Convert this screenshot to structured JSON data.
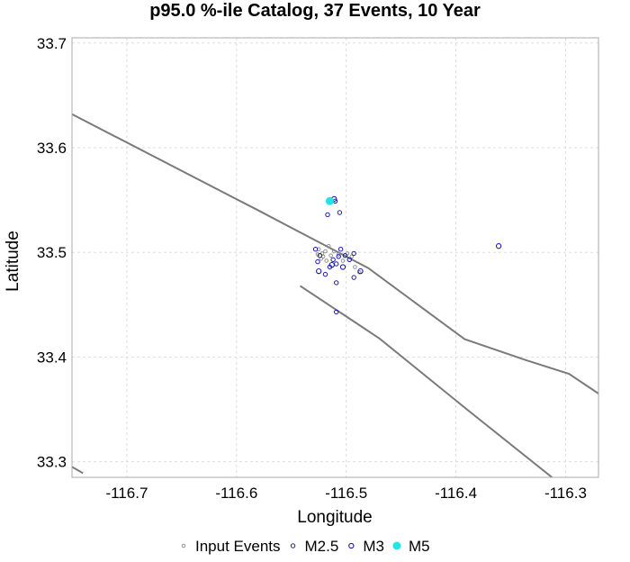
{
  "chart_data": {
    "type": "scatter",
    "title": "p95.0 %-ile Catalog, 37 Events, 10 Year",
    "xlabel": "Longitude",
    "ylabel": "Latitude",
    "xlim": [
      -116.75,
      -116.27
    ],
    "ylim": [
      33.285,
      33.705
    ],
    "x_ticks": [
      -116.7,
      -116.6,
      -116.5,
      -116.4,
      -116.3
    ],
    "x_tick_labels": [
      "-116.7",
      "-116.6",
      "-116.5",
      "-116.4",
      "-116.3"
    ],
    "y_ticks": [
      33.3,
      33.4,
      33.5,
      33.6,
      33.7
    ],
    "y_tick_labels": [
      "33.3",
      "33.4",
      "33.5",
      "33.6",
      "33.7"
    ],
    "grid": true,
    "legend_position": "bottom",
    "fault_lines": [
      {
        "points": [
          [
            -116.75,
            33.632
          ],
          [
            -116.58,
            33.54
          ],
          [
            -116.54,
            33.518
          ],
          [
            -116.48,
            33.485
          ],
          [
            -116.392,
            33.417
          ],
          [
            -116.336,
            33.397
          ],
          [
            -116.297,
            33.384
          ],
          [
            -116.27,
            33.365
          ]
        ]
      },
      {
        "points": [
          [
            -116.542,
            33.468
          ],
          [
            -116.47,
            33.418
          ],
          [
            -116.39,
            33.35
          ],
          [
            -116.31,
            33.283
          ]
        ]
      },
      {
        "points": [
          [
            -116.75,
            33.295
          ],
          [
            -116.74,
            33.289
          ]
        ]
      }
    ],
    "series": [
      {
        "name": "Input Events",
        "color": "#888888",
        "marker": "open-circle",
        "size": "small",
        "points": [
          [
            -116.525,
            33.503
          ],
          [
            -116.522,
            33.499
          ],
          [
            -116.519,
            33.501
          ],
          [
            -116.516,
            33.506
          ],
          [
            -116.521,
            33.496
          ],
          [
            -116.514,
            33.497
          ],
          [
            -116.511,
            33.501
          ],
          [
            -116.507,
            33.498
          ],
          [
            -116.503,
            33.492
          ],
          [
            -116.499,
            33.499
          ],
          [
            -116.495,
            33.496
          ],
          [
            -116.492,
            33.486
          ],
          [
            -116.488,
            33.481
          ],
          [
            -116.526,
            33.498
          ],
          [
            -116.523,
            33.494
          ],
          [
            -116.518,
            33.492
          ]
        ]
      },
      {
        "name": "M2.5",
        "color": "#1a1aa8",
        "marker": "open-circle",
        "size": "medium",
        "points": [
          [
            -116.517,
            33.536
          ],
          [
            -116.506,
            33.538
          ],
          [
            -116.528,
            33.503
          ],
          [
            -116.524,
            33.497
          ],
          [
            -116.512,
            33.493
          ],
          [
            -116.509,
            33.489
          ],
          [
            -116.507,
            33.496
          ],
          [
            -116.505,
            33.503
          ],
          [
            -116.501,
            33.497
          ],
          [
            -116.497,
            33.493
          ],
          [
            -116.493,
            33.499
          ],
          [
            -116.515,
            33.486
          ],
          [
            -116.519,
            33.479
          ],
          [
            -116.526,
            33.491
          ],
          [
            -116.509,
            33.471
          ],
          [
            -116.493,
            33.476
          ],
          [
            -116.509,
            33.443
          ],
          [
            -116.51,
            33.549
          ]
        ]
      },
      {
        "name": "M3",
        "color": "#1a1aa8",
        "marker": "open-circle",
        "size": "large",
        "points": [
          [
            -116.511,
            33.551
          ],
          [
            -116.525,
            33.482
          ],
          [
            -116.513,
            33.488
          ],
          [
            -116.503,
            33.486
          ],
          [
            -116.487,
            33.482
          ],
          [
            -116.361,
            33.506
          ]
        ]
      },
      {
        "name": "M5",
        "color": "#22e6e6",
        "marker": "filled-circle",
        "size": "xlarge",
        "points": [
          [
            -116.515,
            33.549
          ]
        ]
      }
    ]
  }
}
